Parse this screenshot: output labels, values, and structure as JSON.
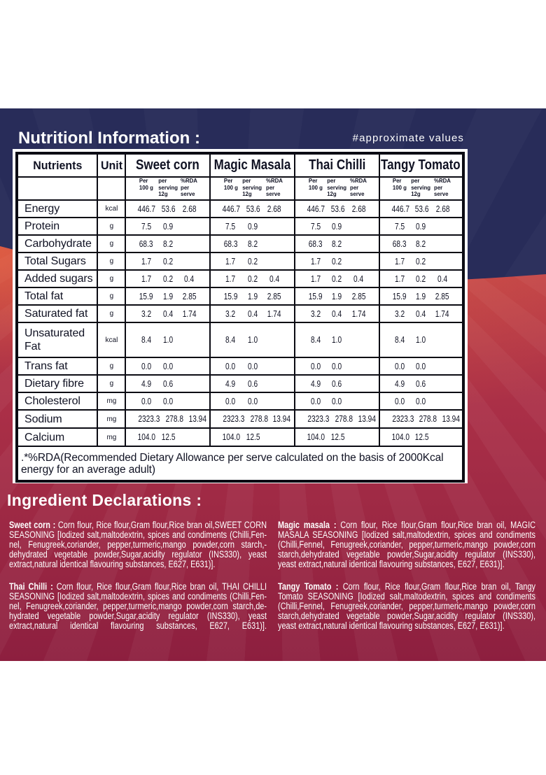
{
  "nutrition": {
    "heading": "Nutritionl Information :",
    "approx_note": "#approximate values"
  },
  "table": {
    "columns": [
      "Nutrients",
      "Unit",
      "Sweet corn",
      "Magic Masala",
      "Thai Chilli",
      "Tangy Tomato"
    ],
    "sub_headers": [
      "Per\n100 g",
      "per\nserving\n12g",
      "%RDA\nper\nserve"
    ],
    "rows": [
      {
        "nutrient": "Energy",
        "unit": "kcal",
        "values": [
          "446.7",
          "53.6",
          "2.68"
        ]
      },
      {
        "nutrient": "Protein",
        "unit": "g",
        "values": [
          "7.5",
          "0.9",
          ""
        ]
      },
      {
        "nutrient": "Carbohydrate",
        "unit": "g",
        "values": [
          "68.3",
          "8.2",
          ""
        ]
      },
      {
        "nutrient": "Total Sugars",
        "unit": "g",
        "values": [
          "1.7",
          "0.2",
          ""
        ]
      },
      {
        "nutrient": "Added sugars",
        "unit": "g",
        "values": [
          "1.7",
          "0.2",
          "0.4"
        ]
      },
      {
        "nutrient": "Total fat",
        "unit": "g",
        "values": [
          "15.9",
          "1.9",
          "2.85"
        ]
      },
      {
        "nutrient": "Saturated fat",
        "unit": "g",
        "values": [
          "3.2",
          "0.4",
          "1.74"
        ]
      },
      {
        "nutrient": "Unsaturated Fat",
        "unit": "kcal",
        "values": [
          "8.4",
          "1.0",
          ""
        ],
        "tall": true
      },
      {
        "nutrient": "Trans fat",
        "unit": "g",
        "values": [
          "0.0",
          "0.0",
          ""
        ]
      },
      {
        "nutrient": "Dietary fibre",
        "unit": "g",
        "values": [
          "4.9",
          "0.6",
          ""
        ]
      },
      {
        "nutrient": "Cholesterol",
        "unit": "mg",
        "values": [
          "0.0",
          "0.0",
          ""
        ]
      },
      {
        "nutrient": "Sodium",
        "unit": "mg",
        "values": [
          "2323.3",
          "278.8",
          "13.94"
        ]
      },
      {
        "nutrient": "Calcium",
        "unit": "mg",
        "values": [
          "104.0",
          "12.5",
          ""
        ]
      }
    ],
    "footnote": ".*%RDA(Recommended Dietary Allowance per serve calculated on the basis of 2000Kcal energy for an average adult)"
  },
  "ingredients": {
    "heading": "Ingredient Declarations :",
    "items": [
      {
        "label": "Sweet corn :",
        "lines": [
          " Corn flour, Rice flour,Gram flour,Rice bran oil,SWEET CORN",
          "SEASONING [Iodized salt,maltodextrin, spices and condiments (Chilli,Fen-",
          "nel, Fenugreek,coriander, pepper,turmeric,mango powder,corn starch,-",
          "dehydrated vegetable powder,Sugar,acidity regulator (INS330), yeast",
          "extract,natural identical flavouring substances, E627, E631)]."
        ],
        "justify_last": false
      },
      {
        "label": "Magic masala :",
        "lines": [
          " Corn flour, Rice flour,Gram flour,Rice bran oil, MAGIC",
          "MASALA SEASONING [Iodized salt,maltodextrin, spices and condiments",
          "(Chilli,Fennel, Fenugreek,coriander, pepper,turmeric,mango powder,corn",
          "starch,dehydrated vegetable powder,Sugar,acidity regulator (INS330),",
          "yeast extract,natural identical flavouring substances, E627, E631)]."
        ],
        "justify_last": false
      },
      {
        "label": "Thai Chilli :",
        "lines": [
          " Corn flour, Rice flour,Gram flour,Rice bran oil, THAI CHILLI",
          "SEASONING [Iodized salt,maltodextrin, spices and condiments (Chilli,Fen-",
          "nel, Fenugreek,coriander, pepper,turmeric,mango powder,corn starch,de-",
          "hydrated vegetable powder,Sugar,acidity regulator (INS330), yeast",
          "extract,natural identical flavouring substances, E627, E631)]."
        ],
        "justify_last": true
      },
      {
        "label": "Tangy Tomato :",
        "lines": [
          " Corn flour, Rice flour,Gram flour,Rice bran oil, Tangy",
          "Tomato SEASONING [Iodized salt,maltodextrin, spices and condiments",
          "(Chilli,Fennel, Fenugreek,coriander, pepper,turmeric,mango powder,corn",
          "starch,dehydrated vegetable powder,Sugar,acidity regulator (INS330),",
          "yeast extract,natural identical flavouring substances, E627, E631)]."
        ],
        "justify_last": false
      }
    ]
  },
  "colors": {
    "navy": "#2a2e5c",
    "red_top": "#bc4049",
    "red_deep": "#8e2040",
    "table_text": "#101223",
    "white": "#ffffff"
  }
}
